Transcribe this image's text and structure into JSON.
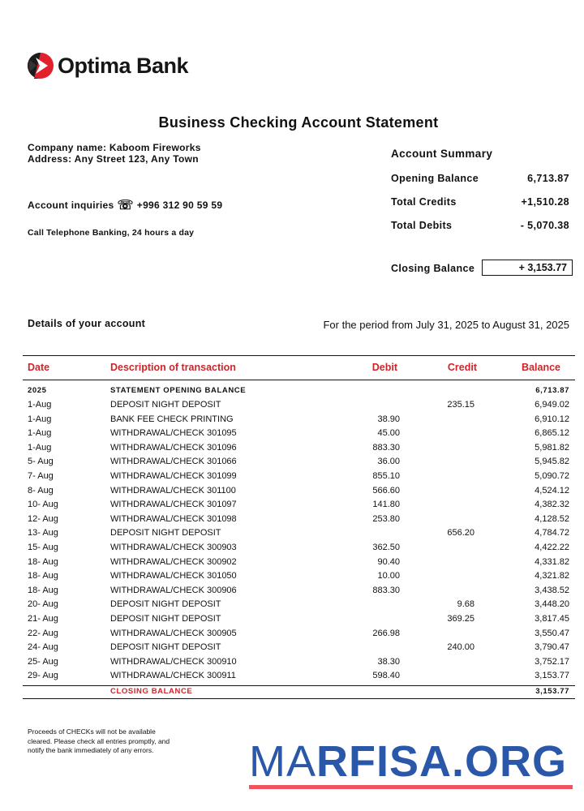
{
  "bank": {
    "name": "Optima Bank",
    "brand_color": "#e3212b"
  },
  "title": "Business Checking Account Statement",
  "company": {
    "name_line": "Company name: Kaboom Fireworks",
    "address_line": "Address: Any Street 123, Any Town",
    "inquiries_label": "Account inquiries",
    "phone_icon": "telephone-icon",
    "phone": "+996 312 90 59 59",
    "telephone_banking": "Call Telephone Banking, 24 hours a day"
  },
  "summary": {
    "heading": "Account Summary",
    "opening_label": "Opening Balance",
    "opening_value": "6,713.87",
    "credits_label": "Total Credits",
    "credits_value": "+1,510.28",
    "debits_label": "Total Debits",
    "debits_value": "- 5,070.38",
    "closing_label": "Closing Balance",
    "closing_value": "+ 3,153.77"
  },
  "details_label": "Details of your account",
  "period": "For the period from July 31, 2025 to August 31, 2025",
  "table": {
    "header_color": "#d0242b",
    "columns": [
      "Date",
      "Description of transaction",
      "Debit",
      "Credit",
      "Balance"
    ],
    "opening": {
      "date": "2025",
      "description": "STATEMENT OPENING BALANCE",
      "balance": "6,713.87"
    },
    "rows": [
      {
        "date": "1-Aug",
        "description": "DEPOSIT NIGHT DEPOSIT",
        "debit": "",
        "credit": "235.15",
        "balance": "6,949.02"
      },
      {
        "date": "1-Aug",
        "description": "BANK FEE CHECK PRINTING",
        "debit": "38.90",
        "credit": "",
        "balance": "6,910.12"
      },
      {
        "date": "1-Aug",
        "description": "WITHDRAWAL/CHECK 301095",
        "debit": "45.00",
        "credit": "",
        "balance": "6,865.12"
      },
      {
        "date": "1-Aug",
        "description": "WITHDRAWAL/CHECK 301096",
        "debit": "883.30",
        "credit": "",
        "balance": "5,981.82"
      },
      {
        "date": "5- Aug",
        "description": "WITHDRAWAL/CHECK 301066",
        "debit": "36.00",
        "credit": "",
        "balance": "5,945.82"
      },
      {
        "date": "7- Aug",
        "description": "WITHDRAWAL/CHECK 301099",
        "debit": "855.10",
        "credit": "",
        "balance": "5,090.72"
      },
      {
        "date": "8- Aug",
        "description": "WITHDRAWAL/CHECK 301100",
        "debit": "566.60",
        "credit": "",
        "balance": "4,524.12"
      },
      {
        "date": "10- Aug",
        "description": "WITHDRAWAL/CHECK 301097",
        "debit": "141.80",
        "credit": "",
        "balance": "4,382.32"
      },
      {
        "date": "12- Aug",
        "description": "WITHDRAWAL/CHECK 301098",
        "debit": "253.80",
        "credit": "",
        "balance": "4,128.52"
      },
      {
        "date": "13- Aug",
        "description": "DEPOSIT NIGHT DEPOSIT",
        "debit": "",
        "credit": "656.20",
        "balance": "4,784.72"
      },
      {
        "date": "15- Aug",
        "description": "WITHDRAWAL/CHECK 300903",
        "debit": "362.50",
        "credit": "",
        "balance": "4,422.22"
      },
      {
        "date": "18- Aug",
        "description": "WITHDRAWAL/CHECK 300902",
        "debit": "90.40",
        "credit": "",
        "balance": "4,331.82"
      },
      {
        "date": "18- Aug",
        "description": "WITHDRAWAL/CHECK 301050",
        "debit": "10.00",
        "credit": "",
        "balance": "4,321.82"
      },
      {
        "date": "18- Aug",
        "description": "WITHDRAWAL/CHECK 300906",
        "debit": "883.30",
        "credit": "",
        "balance": "3,438.52"
      },
      {
        "date": "20- Aug",
        "description": "DEPOSIT NIGHT DEPOSIT",
        "debit": "",
        "credit": "9.68",
        "balance": "3,448.20"
      },
      {
        "date": "21- Aug",
        "description": "DEPOSIT NIGHT DEPOSIT",
        "debit": "",
        "credit": "369.25",
        "balance": "3,817.45"
      },
      {
        "date": "22- Aug",
        "description": "WITHDRAWAL/CHECK 300905",
        "debit": "266.98",
        "credit": "",
        "balance": "3,550.47"
      },
      {
        "date": "24- Aug",
        "description": "DEPOSIT NIGHT DEPOSIT",
        "debit": "",
        "credit": "240.00",
        "balance": "3,790.47"
      },
      {
        "date": "25- Aug",
        "description": "WITHDRAWAL/CHECK 300910",
        "debit": "38.30",
        "credit": "",
        "balance": "3,752.17"
      },
      {
        "date": "29- Aug",
        "description": "WITHDRAWAL/CHECK 300911",
        "debit": "598.40",
        "credit": "",
        "balance": "3,153.77"
      }
    ],
    "closing": {
      "description": "CLOSING BALANCE",
      "balance": "3,153.77"
    }
  },
  "footer_note": [
    "Proceeds of CHECKs will not be available",
    "cleared. Please check all entries promptly, and",
    "notify the bank immediately of any errors."
  ],
  "watermark": {
    "text_light": "MA",
    "text_bold": "RFISA.ORG",
    "color": "#2a57a8",
    "underline_color": "#f0535b"
  }
}
